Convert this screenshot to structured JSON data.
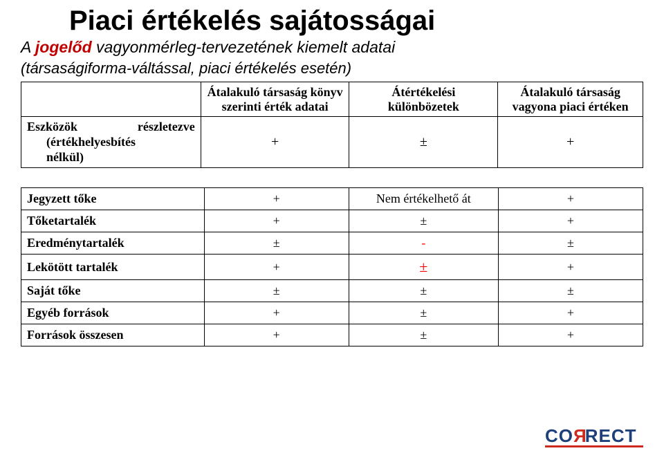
{
  "title": "Piaci értékelés sajátosságai",
  "subtitle_parts": {
    "a": "A ",
    "red": "jogelőd",
    "rest": " vagyonmérleg-tervezetének kiemelt adatai"
  },
  "subtitle2": "(társaságiforma-váltással, piaci értékelés esetén)",
  "table1": {
    "headers": {
      "c1": "Átalakuló társaság könyv szerinti érték adatai",
      "c2": "Átértékelési különbözetek",
      "c3": "Átalakuló társaság vagyona piaci értéken"
    },
    "row_label_lines": {
      "l1_left": "Eszközök",
      "l1_right": "részletezve",
      "l2": "(értékhelyesbítés",
      "l3": "nélkül)"
    },
    "row_values": {
      "c1": "+",
      "c2": "±",
      "c3": "+"
    }
  },
  "table2": {
    "rows": [
      {
        "label": "Jegyzett tőke",
        "c1": "+",
        "c2": "Nem értékelhető át",
        "c3": "+"
      },
      {
        "label": "Tőketartalék",
        "c1": "+",
        "c2": "±",
        "c3": "+"
      },
      {
        "label": "Eredménytartalék",
        "c1": "±",
        "c2": "-",
        "c3": "±",
        "c2_style": "red-minus"
      },
      {
        "label": "Lekötött tartalék",
        "c1": "+",
        "c2": "±",
        "c3": "+",
        "c2_style": "red-pm"
      },
      {
        "label": "Saját tőke",
        "c1": "±",
        "c2": "±",
        "c3": "±"
      },
      {
        "label": "Egyéb források",
        "c1": "+",
        "c2": "±",
        "c3": "+"
      },
      {
        "label": "Források összesen",
        "c1": "+",
        "c2": "±",
        "c3": "+"
      }
    ]
  },
  "logo": {
    "left": "CO",
    "mirror": "R",
    "right": "RECT"
  }
}
